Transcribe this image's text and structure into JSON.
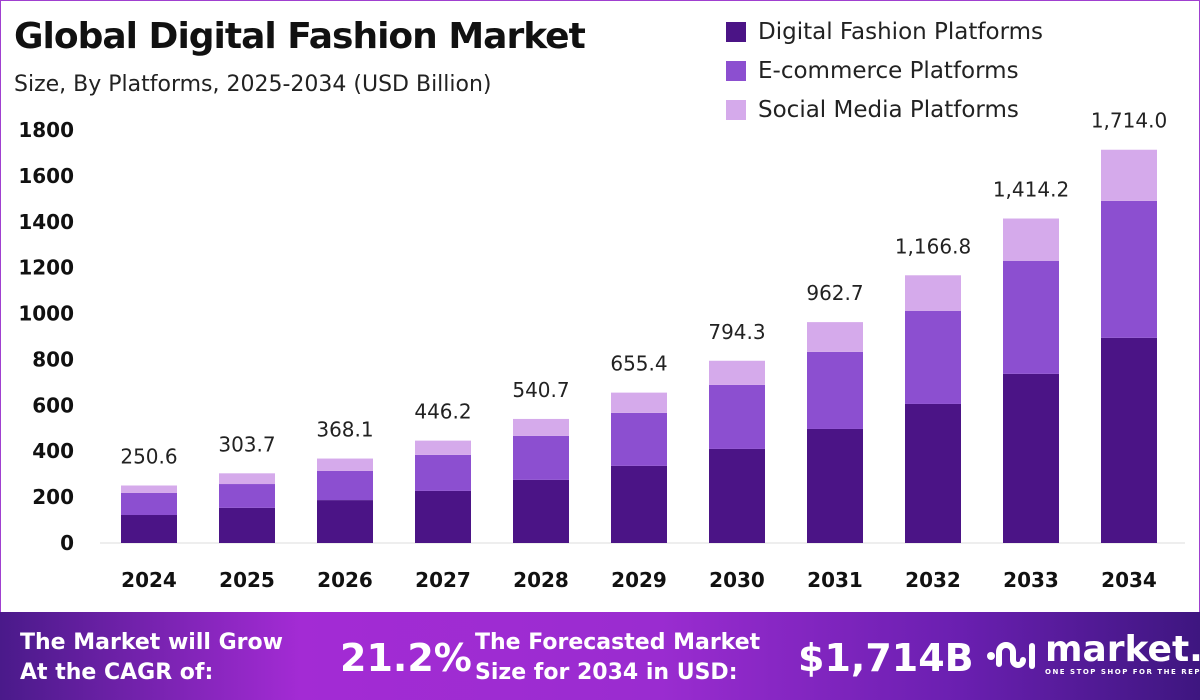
{
  "header": {
    "title": "Global Digital Fashion Market",
    "subtitle": "Size, By Platforms, 2025-2034 (USD Billion)"
  },
  "chart_data": {
    "type": "bar",
    "stacked": true,
    "title": "Global Digital Fashion Market",
    "subtitle": "Size, By Platforms, 2025-2034 (USD Billion)",
    "categories": [
      "2024",
      "2025",
      "2026",
      "2027",
      "2028",
      "2029",
      "2030",
      "2031",
      "2032",
      "2033",
      "2034"
    ],
    "series": [
      {
        "name": "Digital Fashion Platforms",
        "color": "#4b1486",
        "values": [
          122,
          153,
          187,
          227,
          275,
          336,
          410,
          497,
          606,
          737,
          894
        ]
      },
      {
        "name": "E-commerce Platforms",
        "color": "#8c4fd0",
        "values": [
          96,
          104,
          127,
          157,
          192,
          231,
          279,
          336,
          406,
          493,
          597
        ]
      },
      {
        "name": "Social Media Platforms",
        "color": "#d5aaeb",
        "values": [
          32.6,
          46.7,
          54.1,
          62.2,
          73.7,
          88.4,
          105.3,
          129.7,
          154.8,
          184.2,
          223
        ]
      }
    ],
    "totals": [
      "250.6",
      "303.7",
      "368.1",
      "446.2",
      "540.7",
      "655.4",
      "794.3",
      "962.7",
      "1,166.8",
      "1,414.2",
      "1,714.0"
    ],
    "yticks": [
      "0",
      "200",
      "400",
      "600",
      "800",
      "1000",
      "1200",
      "1400",
      "1600",
      "1800"
    ],
    "ylim": [
      0,
      1800
    ],
    "grid": false,
    "legend": "top-right"
  },
  "footer": {
    "cagr_label_1": "The Market will Grow",
    "cagr_label_2": "At the CAGR of:",
    "cagr_value": "21.2%",
    "forecast_label_1": "The Forecasted Market",
    "forecast_label_2": "Size for 2034 in USD:",
    "forecast_value": "$1,714B",
    "logo_name": "market.us",
    "logo_tagline": "ONE STOP SHOP FOR THE REPORTS"
  }
}
